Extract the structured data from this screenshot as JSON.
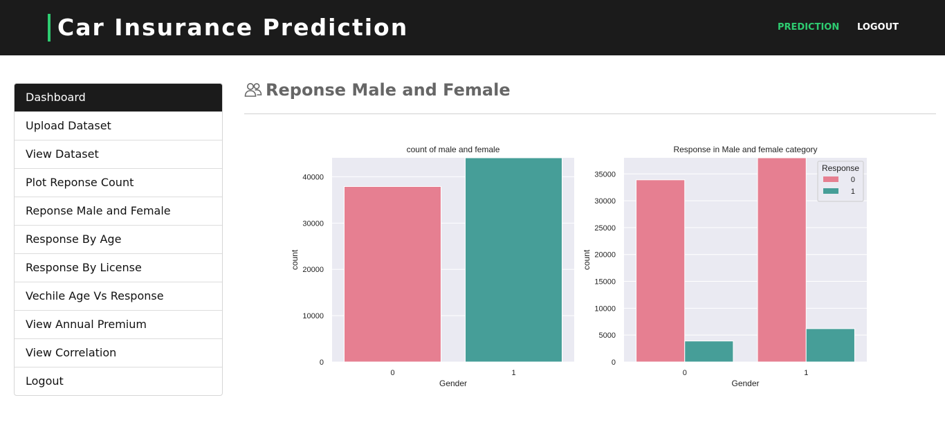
{
  "header": {
    "brand": "Car Insurance Prediction",
    "nav": [
      {
        "label": "PREDICTION",
        "color": "#2ecc71"
      },
      {
        "label": "LOGOUT",
        "color": "#ffffff"
      }
    ]
  },
  "sidebar": {
    "items": [
      {
        "label": "Dashboard",
        "active": true
      },
      {
        "label": "Upload Dataset"
      },
      {
        "label": "View Dataset"
      },
      {
        "label": "Plot Reponse Count"
      },
      {
        "label": "Reponse Male and Female"
      },
      {
        "label": "Response By Age"
      },
      {
        "label": "Response By License"
      },
      {
        "label": "Vechile Age Vs Response"
      },
      {
        "label": "View Annual Premium"
      },
      {
        "label": "View Correlation"
      },
      {
        "label": "Logout"
      }
    ]
  },
  "main": {
    "title": "Reponse Male and Female",
    "title_icon": "users-icon"
  },
  "colors": {
    "accent": "#2ecc71",
    "bar_pink": "#e67f91",
    "bar_teal": "#469e98",
    "plot_bg": "#eaeaf2"
  },
  "chart_data": [
    {
      "type": "bar",
      "title": "count of male and female",
      "xlabel": "Gender",
      "ylabel": "count",
      "categories": [
        "0",
        "1"
      ],
      "values": [
        37900,
        44100
      ],
      "ylim": [
        0,
        44100
      ],
      "yticks": [
        0,
        10000,
        20000,
        30000,
        40000
      ],
      "grid": true
    },
    {
      "type": "bar",
      "title": "Response in Male and female category",
      "xlabel": "Gender",
      "ylabel": "count",
      "categories": [
        "0",
        "1"
      ],
      "series": [
        {
          "name": "0",
          "values": [
            33900,
            38000
          ]
        },
        {
          "name": "1",
          "values": [
            3900,
            6200
          ]
        }
      ],
      "legend": {
        "title": "Response",
        "position": "top-right"
      },
      "ylim": [
        0,
        38000
      ],
      "yticks": [
        0,
        5000,
        10000,
        15000,
        20000,
        25000,
        30000,
        35000
      ],
      "grid": true
    }
  ]
}
